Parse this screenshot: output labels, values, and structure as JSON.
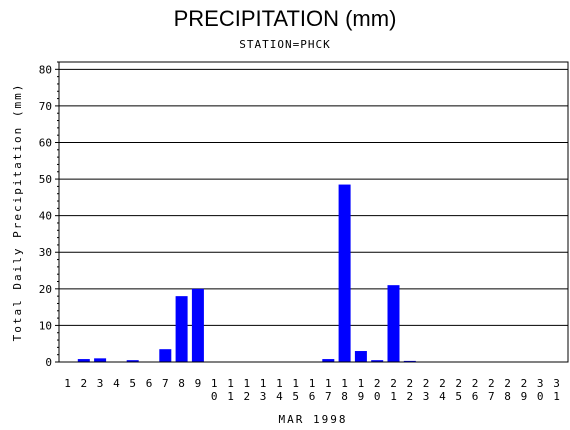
{
  "chart_data": {
    "type": "bar",
    "title": "PRECIPITATION (mm)",
    "subtitle": "STATION=PHCK",
    "xlabel": "MAR 1998",
    "ylabel": "Total Daily Precipitation (mm)",
    "ylim": [
      0,
      82
    ],
    "yticks": [
      0,
      10,
      20,
      30,
      40,
      50,
      60,
      70,
      80
    ],
    "grid": true,
    "bar_color": "#0000ff",
    "categories": [
      "1",
      "2",
      "3",
      "4",
      "5",
      "6",
      "7",
      "8",
      "9",
      "10",
      "11",
      "12",
      "13",
      "14",
      "15",
      "16",
      "17",
      "18",
      "19",
      "20",
      "21",
      "22",
      "23",
      "24",
      "25",
      "26",
      "27",
      "28",
      "29",
      "30",
      "31"
    ],
    "values": [
      0,
      0.8,
      1.0,
      0,
      0.5,
      0,
      3.5,
      18.0,
      20.0,
      0,
      0,
      0,
      0,
      0,
      0,
      0,
      0.8,
      48.5,
      3.0,
      0.5,
      21.0,
      0.3,
      0,
      0,
      0,
      0,
      0,
      0,
      0,
      0,
      0
    ]
  }
}
